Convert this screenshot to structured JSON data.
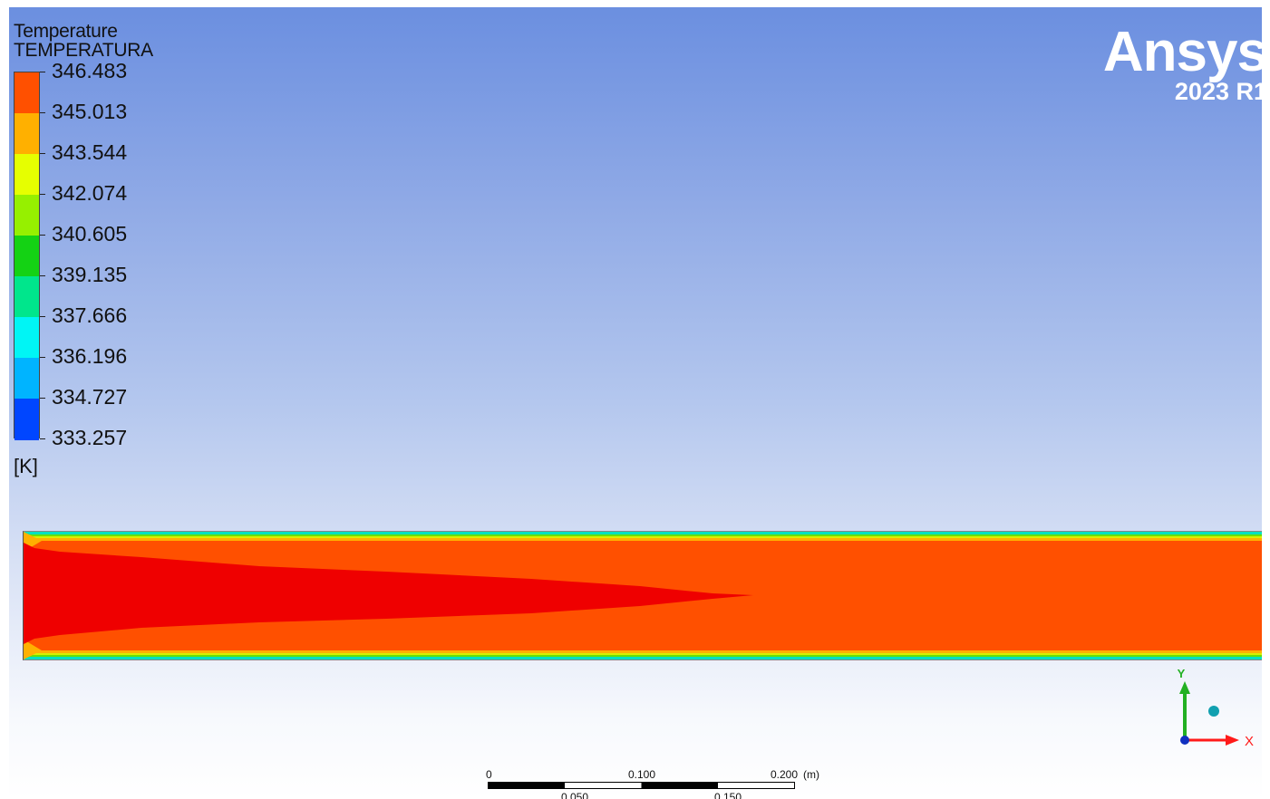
{
  "legend": {
    "title": "Temperature",
    "subtitle": "TEMPERATURA",
    "unit": "[K]",
    "labels": [
      "346.483",
      "345.013",
      "343.544",
      "342.074",
      "340.605",
      "339.135",
      "337.666",
      "336.196",
      "334.727",
      "333.257"
    ],
    "band_colors": [
      "#ff5000",
      "#ffb000",
      "#e6ff00",
      "#96f000",
      "#14d214",
      "#00e68c",
      "#00f5f5",
      "#00b4ff",
      "#0046ff"
    ]
  },
  "logo": {
    "name": "Ansys",
    "version": "2023 R1"
  },
  "contour_colors": {
    "core": "#ef0000",
    "bulk": "#ff5000",
    "wall_layers": [
      "#ffb000",
      "#d8f000",
      "#6ae000",
      "#00e0c0"
    ]
  },
  "axis_triad": {
    "y_label": "Y",
    "x_label": "X",
    "x_color": "#ff1a1a",
    "y_color": "#22b022",
    "z_color": "#11a0b0"
  },
  "scale": {
    "top_labels": [
      "0",
      "0.100",
      "0.200"
    ],
    "unit": "(m)",
    "bottom_labels": [
      "0.050",
      "0.150"
    ]
  }
}
